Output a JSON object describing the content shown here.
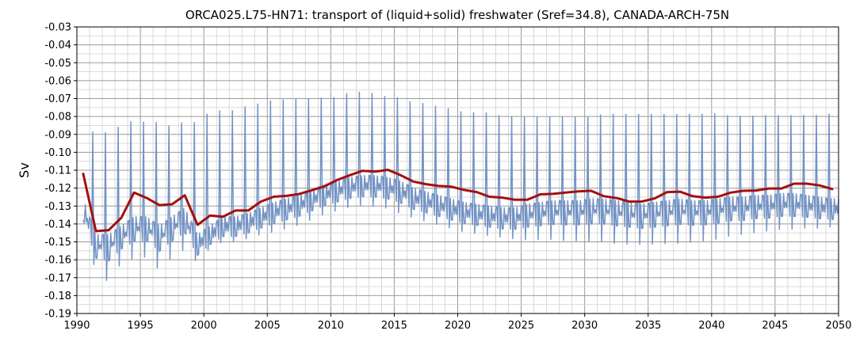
{
  "chart_data": {
    "type": "line",
    "title": "ORCA025.L75-HN71: transport of (liquid+solid) freshwater (Sref=34.8), CANADA-ARCH-75N",
    "xlabel": "",
    "ylabel": "Sv",
    "xlim": [
      1990,
      2050
    ],
    "ylim": [
      -0.19,
      -0.03
    ],
    "xticks": [
      "1990",
      "1995",
      "2000",
      "2005",
      "2010",
      "2015",
      "2020",
      "2025",
      "2030",
      "2035",
      "2040",
      "2045",
      "2050"
    ],
    "yticks": [
      "-0.03",
      "-0.04",
      "-0.05",
      "-0.06",
      "-0.07",
      "-0.08",
      "-0.09",
      "-0.10",
      "-0.11",
      "-0.12",
      "-0.13",
      "-0.14",
      "-0.15",
      "-0.16",
      "-0.17",
      "-0.18",
      "-0.19"
    ],
    "grid": true,
    "legend": "none",
    "series": [
      {
        "kind": "monthly-envelope",
        "color": "#7393c4",
        "period": 1,
        "peak_phase": 0.2,
        "annual": {
          "x": [
            1990.5,
            1991.5,
            1992.5,
            1993.5,
            1994.5,
            1995.5,
            1996.5,
            1997.5,
            1998.5,
            1999.5,
            2000.5,
            2001.5,
            2002.5,
            2003.5,
            2004.5,
            2005.5,
            2006.5,
            2007.5,
            2008.5,
            2009.5,
            2010.5,
            2011.5,
            2012.5,
            2013.5,
            2014.5,
            2015.5,
            2016.5,
            2017.5,
            2018.5,
            2019.5,
            2020.5,
            2021.5,
            2022.5,
            2023.5,
            2024.5,
            2025.5,
            2026.5,
            2027.5,
            2028.5,
            2029.5,
            2030.5,
            2031.5,
            2032.5,
            2033.5,
            2034.5,
            2035.5,
            2036.5,
            2037.5,
            2038.5,
            2039.5,
            2040.5,
            2041.5,
            2042.5,
            2043.5,
            2044.5,
            2045.5,
            2046.5,
            2047.5,
            2048.5,
            2049.5
          ],
          "max": [
            -0.093,
            -0.073,
            -0.078,
            -0.073,
            -0.071,
            -0.072,
            -0.071,
            -0.075,
            -0.072,
            -0.072,
            -0.066,
            -0.066,
            -0.066,
            -0.063,
            -0.062,
            -0.06,
            -0.06,
            -0.06,
            -0.06,
            -0.06,
            -0.06,
            -0.057,
            -0.057,
            -0.058,
            -0.06,
            -0.06,
            -0.063,
            -0.063,
            -0.065,
            -0.066,
            -0.068,
            -0.068,
            -0.068,
            -0.07,
            -0.07,
            -0.07,
            -0.07,
            -0.07,
            -0.07,
            -0.07,
            -0.07,
            -0.068,
            -0.068,
            -0.068,
            -0.068,
            -0.068,
            -0.068,
            -0.068,
            -0.068,
            -0.068,
            -0.068,
            -0.07,
            -0.07,
            -0.07,
            -0.07,
            -0.07,
            -0.07,
            -0.07,
            -0.07,
            -0.069
          ],
          "min": [
            -0.145,
            -0.17,
            -0.177,
            -0.165,
            -0.163,
            -0.162,
            -0.17,
            -0.162,
            -0.158,
            -0.164,
            -0.155,
            -0.152,
            -0.152,
            -0.15,
            -0.148,
            -0.147,
            -0.145,
            -0.143,
            -0.14,
            -0.137,
            -0.135,
            -0.133,
            -0.132,
            -0.133,
            -0.134,
            -0.137,
            -0.139,
            -0.141,
            -0.143,
            -0.145,
            -0.147,
            -0.148,
            -0.149,
            -0.15,
            -0.151,
            -0.152,
            -0.152,
            -0.152,
            -0.153,
            -0.153,
            -0.154,
            -0.154,
            -0.155,
            -0.155,
            -0.155,
            -0.155,
            -0.155,
            -0.155,
            -0.154,
            -0.153,
            -0.152,
            -0.15,
            -0.149,
            -0.148,
            -0.147,
            -0.146,
            -0.146,
            -0.145,
            -0.145,
            -0.144
          ],
          "trough": [
            -0.13,
            -0.15,
            -0.15,
            -0.145,
            -0.14,
            -0.14,
            -0.145,
            -0.14,
            -0.135,
            -0.15,
            -0.145,
            -0.14,
            -0.14,
            -0.138,
            -0.135,
            -0.132,
            -0.13,
            -0.128,
            -0.125,
            -0.122,
            -0.12,
            -0.118,
            -0.117,
            -0.117,
            -0.118,
            -0.12,
            -0.124,
            -0.126,
            -0.128,
            -0.13,
            -0.132,
            -0.133,
            -0.134,
            -0.135,
            -0.135,
            -0.133,
            -0.132,
            -0.131,
            -0.131,
            -0.131,
            -0.13,
            -0.13,
            -0.131,
            -0.132,
            -0.133,
            -0.132,
            -0.131,
            -0.13,
            -0.131,
            -0.131,
            -0.13,
            -0.129,
            -0.129,
            -0.128,
            -0.128,
            -0.127,
            -0.127,
            -0.128,
            -0.129,
            -0.13
          ]
        }
      },
      {
        "kind": "line",
        "color": "#a31010",
        "x": [
          1990.5,
          1991.5,
          1992.5,
          1993.5,
          1994.5,
          1995.5,
          1996.5,
          1997.5,
          1998.5,
          1999.5,
          2000.5,
          2001.5,
          2002.5,
          2003.5,
          2004.5,
          2005.5,
          2006.5,
          2007.5,
          2008.5,
          2009.5,
          2010.5,
          2011.5,
          2012.5,
          2013.5,
          2014.5,
          2015.5,
          2016.5,
          2017.5,
          2018.5,
          2019.5,
          2020.5,
          2021.5,
          2022.5,
          2023.5,
          2024.5,
          2025.5,
          2026.5,
          2027.5,
          2028.5,
          2029.5,
          2030.5,
          2031.5,
          2032.5,
          2033.5,
          2034.5,
          2035.5,
          2036.5,
          2037.5,
          2038.5,
          2039.5,
          2040.5,
          2041.5,
          2042.5,
          2043.5,
          2044.5,
          2045.5,
          2046.5,
          2047.5,
          2048.5,
          2049.5
        ],
        "y": [
          -0.112,
          -0.144,
          -0.1435,
          -0.1365,
          -0.1225,
          -0.1255,
          -0.1295,
          -0.129,
          -0.124,
          -0.1405,
          -0.1353,
          -0.136,
          -0.1325,
          -0.1325,
          -0.1275,
          -0.1248,
          -0.1243,
          -0.1233,
          -0.1212,
          -0.119,
          -0.1155,
          -0.1128,
          -0.1103,
          -0.1108,
          -0.1098,
          -0.1128,
          -0.1163,
          -0.1178,
          -0.1188,
          -0.1192,
          -0.121,
          -0.1222,
          -0.1248,
          -0.1253,
          -0.1265,
          -0.1265,
          -0.1235,
          -0.1232,
          -0.1225,
          -0.1218,
          -0.1215,
          -0.1245,
          -0.1255,
          -0.1275,
          -0.1275,
          -0.1258,
          -0.1222,
          -0.122,
          -0.1245,
          -0.1253,
          -0.1248,
          -0.1225,
          -0.1215,
          -0.1213,
          -0.1202,
          -0.1202,
          -0.1175,
          -0.1175,
          -0.1185,
          -0.1205
        ]
      }
    ]
  }
}
